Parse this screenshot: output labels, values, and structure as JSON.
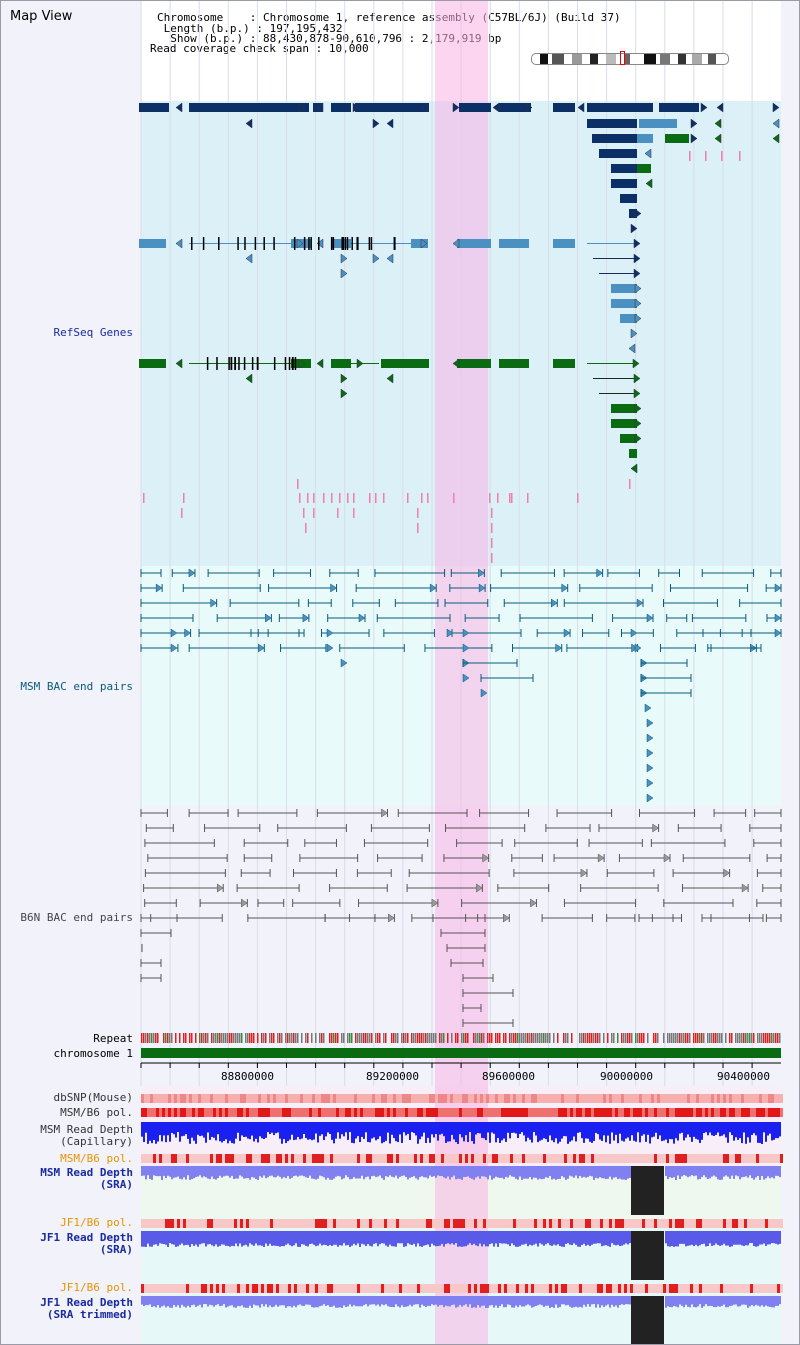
{
  "view_title": "Map View",
  "info": {
    "chromosome_label": "Chromosome",
    "chromosome_value": "Chromosome 1, reference assembly (C57BL/6J) (Build 37)",
    "length_label": "Length (b.p.)",
    "length_value": "197,195,432",
    "show_label": "Show (b.p.)",
    "show_value": "88,430,878-90,610,796 : 2,179,919 bp",
    "coverage_label": "Read coverage check span",
    "coverage_value": "10,000"
  },
  "tracks": {
    "refseq": "RefSeq Genes",
    "msm_bac": "MSM BAC end pairs",
    "b6n_bac": "B6N BAC end pairs",
    "repeat": "Repeat",
    "chromosome": "chromosome 1",
    "dbsnp": "dbSNP(Mouse)",
    "msm_b6_pol": "MSM/B6 pol.",
    "msm_read_depth_cap_1": "MSM Read Depth",
    "msm_read_depth_cap_2": "(Capillary)",
    "msm_b6_pol_2": "MSM/B6 pol.",
    "msm_read_depth_sra_1": "MSM Read Depth",
    "msm_read_depth_sra_2": "(SRA)",
    "jf1_b6_pol_1": "JF1/B6 pol.",
    "jf1_read_depth_sra_1": "JF1 Read Depth",
    "jf1_read_depth_sra_2": "(SRA)",
    "jf1_b6_pol_2": "JF1/B6 pol.",
    "jf1_read_depth_trim_1": "JF1 Read Depth",
    "jf1_read_depth_trim_2": "(SRA trimmed)"
  },
  "axis_ticks": [
    "88800000",
    "89200000",
    "89600000",
    "90000000",
    "90400000"
  ],
  "colors": {
    "refseq_bg": "#dcf0f8",
    "bac_bg": "#e8fafa",
    "gene_navy": "#0c2f66",
    "gene_blue": "#4a90c0",
    "gene_green": "#0b6b12",
    "highlight": "#fab4e6",
    "label_blue": "#1a2aa0",
    "label_orange": "#e89400"
  }
}
